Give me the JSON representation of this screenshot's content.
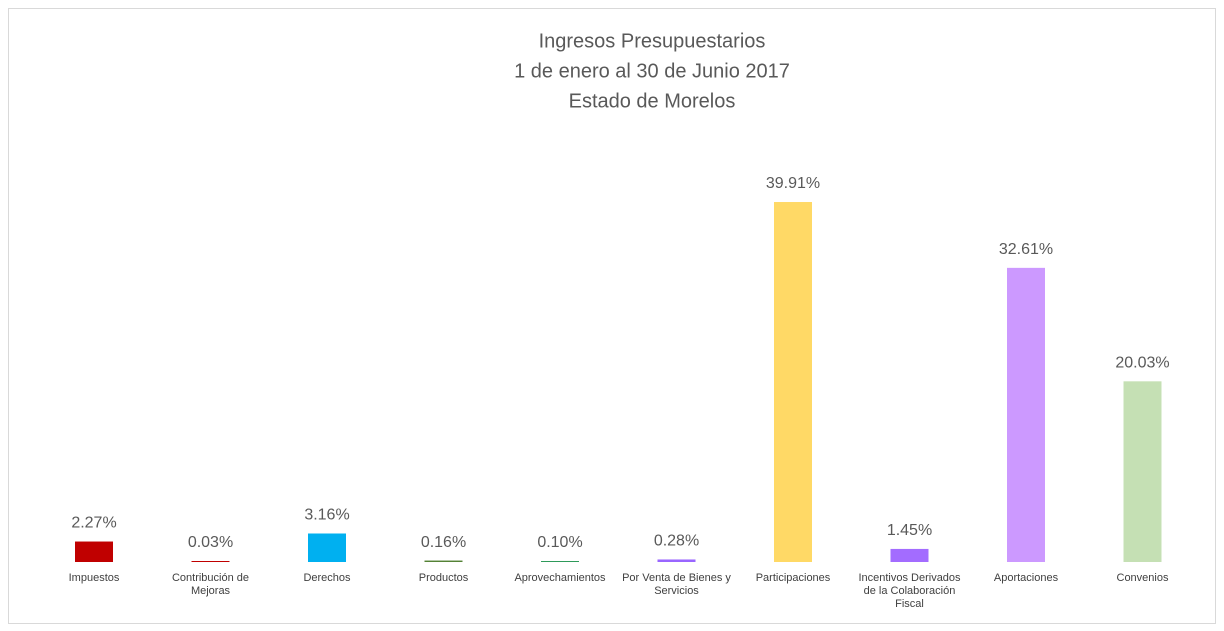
{
  "chart_data": {
    "type": "bar",
    "title": "Ingresos Presupuestarios",
    "subtitle": [
      "1 de enero al 30 de Junio 2017",
      "Estado de Morelos"
    ],
    "categories": [
      "Impuestos",
      "Contribución de Mejoras",
      "Derechos",
      "Productos",
      "Aprovechamientos",
      "Por Venta de Bienes y Servicios",
      "Participaciones",
      "Incentivos Derivados de la Colaboración Fiscal",
      "Aportaciones",
      "Convenios"
    ],
    "values": [
      2.27,
      0.03,
      3.16,
      0.16,
      0.1,
      0.28,
      39.91,
      1.45,
      32.61,
      20.03
    ],
    "value_labels": [
      "2.27%",
      "0.03%",
      "3.16%",
      "0.16%",
      "0.10%",
      "0.28%",
      "39.91%",
      "1.45%",
      "32.61%",
      "20.03%"
    ],
    "colors": [
      "#c00000",
      "#c00000",
      "#00b0f0",
      "#548235",
      "#2e9a5a",
      "#9966ff",
      "#ffd966",
      "#a36cff",
      "#cc99ff",
      "#c5e0b4"
    ]
  }
}
